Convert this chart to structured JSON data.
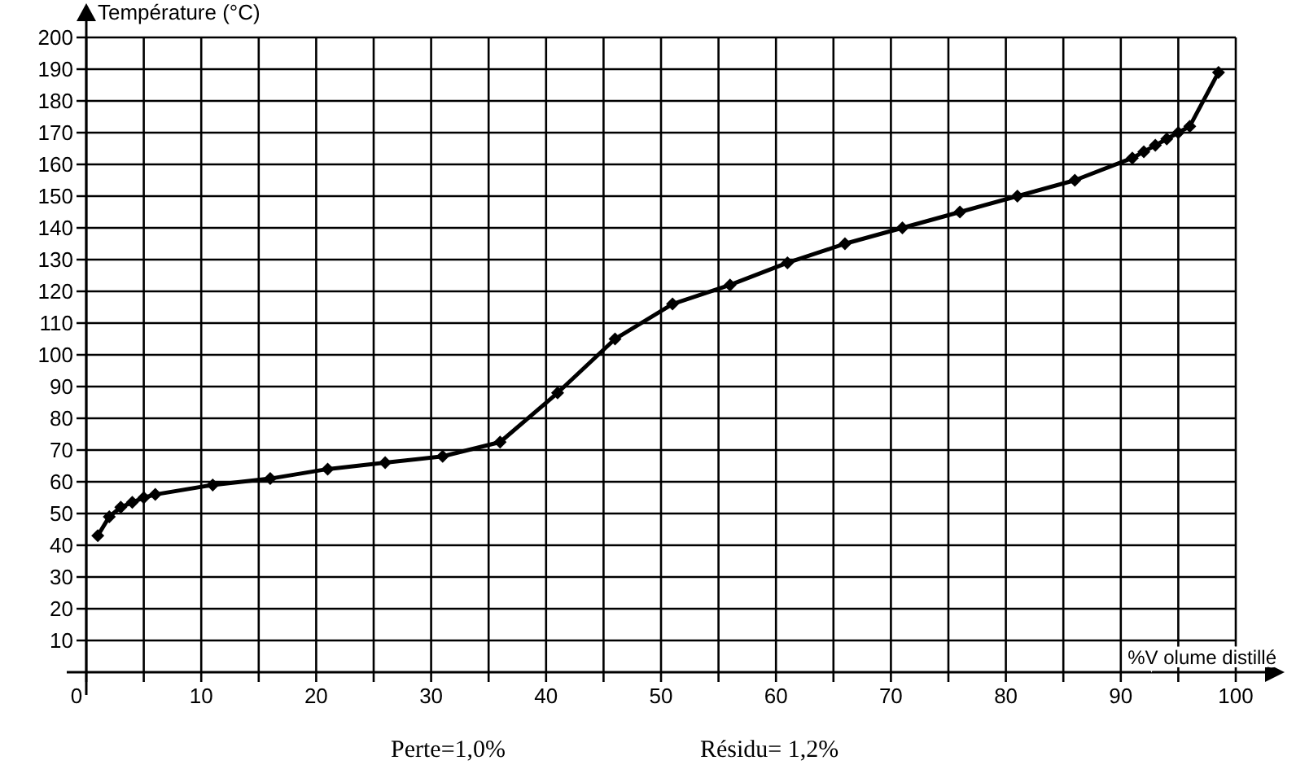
{
  "chart_data": {
    "type": "line",
    "ylabel": "Température (°C)",
    "xlabel": "%V olume distillé",
    "x": [
      1,
      2,
      3,
      4,
      5,
      6,
      11,
      16,
      21,
      26,
      31,
      36,
      41,
      46,
      51,
      56,
      61,
      66,
      71,
      76,
      81,
      86,
      91,
      92,
      93,
      94,
      95,
      96,
      98.5
    ],
    "series": [
      {
        "color": "#000000",
        "values": [
          43,
          49,
          52,
          53.5,
          55,
          56,
          59,
          61,
          64,
          66,
          68,
          72.5,
          88,
          105,
          116,
          122,
          129,
          135,
          140,
          145,
          150,
          155,
          162,
          164,
          166,
          168,
          170,
          172,
          189
        ]
      }
    ],
    "xlim": [
      0,
      100
    ],
    "ylim": [
      0,
      200
    ],
    "xticks": [
      0,
      {
        "value": 5,
        "label": null
      },
      10,
      {
        "value": 15,
        "label": null
      },
      20,
      {
        "value": 25,
        "label": null
      },
      30,
      {
        "value": 35,
        "label": null
      },
      40,
      {
        "value": 45,
        "label": null
      },
      50,
      {
        "value": 55,
        "label": null
      },
      60,
      {
        "value": 65,
        "label": null
      },
      70,
      {
        "value": 75,
        "label": null
      },
      80,
      {
        "value": 85,
        "label": null
      },
      90,
      {
        "value": 95,
        "label": null
      },
      100
    ],
    "yticks": [
      10,
      20,
      30,
      40,
      50,
      60,
      70,
      80,
      90,
      100,
      110,
      120,
      130,
      140,
      150,
      160,
      170,
      180,
      190,
      200
    ],
    "grid": true,
    "marker": "diamond",
    "line_style": "solid",
    "annotations": [
      "Perte=1,0%",
      "Résidu= 1,2%"
    ]
  }
}
